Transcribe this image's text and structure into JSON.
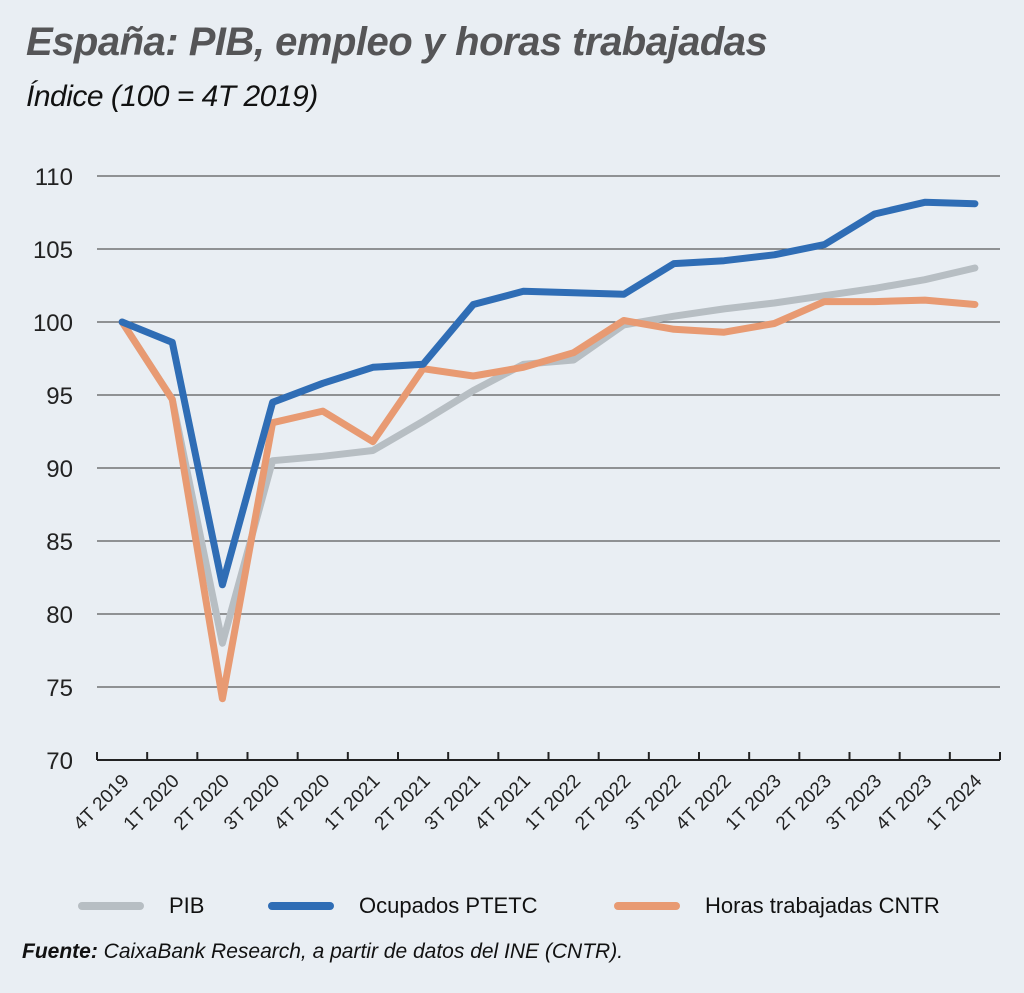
{
  "title": "España: PIB, empleo y horas trabajadas",
  "subtitle": "Índice (100 = 4T 2019)",
  "source_label": "Fuente:",
  "source_text": " CaixaBank Research, a partir de datos del INE (CNTR).",
  "chart_data": {
    "type": "line",
    "title": "España: PIB, empleo y horas trabajadas",
    "subtitle": "Índice (100 = 4T 2019)",
    "xlabel": "",
    "ylabel": "",
    "ylim": [
      70,
      110
    ],
    "yticks": [
      70,
      75,
      80,
      85,
      90,
      95,
      100,
      105,
      110
    ],
    "grid": true,
    "legend_position": "bottom",
    "categories": [
      "4T 2019",
      "1T 2020",
      "2T 2020",
      "3T 2020",
      "4T 2020",
      "1T 2021",
      "2T 2021",
      "3T 2021",
      "4T 2021",
      "1T 2022",
      "2T 2022",
      "3T 2022",
      "4T 2022",
      "1T 2023",
      "2T 2023",
      "3T 2023",
      "4T 2023",
      "1T 2024"
    ],
    "series": [
      {
        "name": "PIB",
        "color": "#b7bec3",
        "values": [
          100,
          94.7,
          78.0,
          90.5,
          90.8,
          91.2,
          93.2,
          95.3,
          97.1,
          97.4,
          99.8,
          100.4,
          100.9,
          101.3,
          101.8,
          102.3,
          102.9,
          103.7
        ]
      },
      {
        "name": "Ocupados PTETC",
        "color": "#2f6db5",
        "values": [
          100,
          98.6,
          82.0,
          94.5,
          95.8,
          96.9,
          97.1,
          101.2,
          102.1,
          102.0,
          101.9,
          104.0,
          104.2,
          104.6,
          105.3,
          107.4,
          108.2,
          108.1
        ]
      },
      {
        "name": "Horas trabajadas CNTR",
        "color": "#e89a72",
        "values": [
          100,
          94.7,
          74.2,
          93.1,
          93.9,
          91.8,
          96.8,
          96.3,
          96.9,
          97.9,
          100.1,
          99.5,
          99.3,
          99.9,
          101.4,
          101.4,
          101.5,
          101.2
        ]
      }
    ]
  }
}
